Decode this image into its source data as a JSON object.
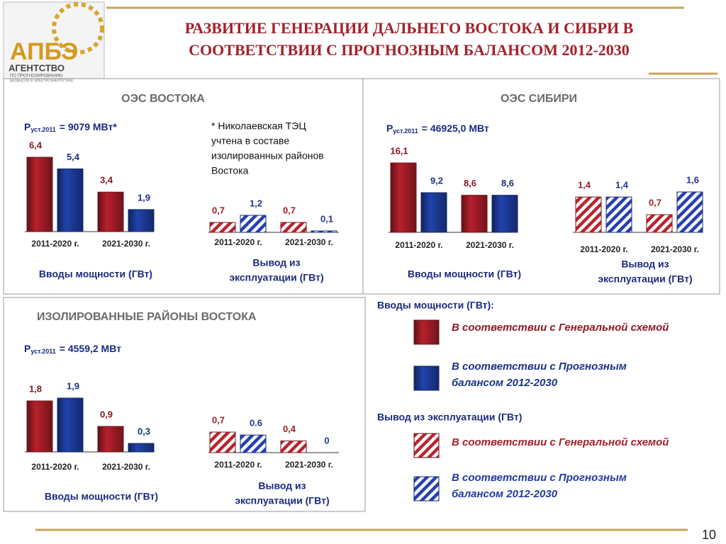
{
  "header": {
    "title_lines": [
      "РАЗВИТИЕ ГЕНЕРАЦИИ ДАЛЬНЕГО ВОСТОКА И СИБРИ В",
      "СООТВЕТСТВИИ С ПРОГНОЗНЫМ БАЛАНСОМ 2012-2030"
    ],
    "logo": {
      "mark": "АПБЭ",
      "name": "АГЕНТСТВО",
      "sub_lines": [
        "ПО ПРОГНОЗИРОВАНИЮ",
        "БАЛАНСОВ В ЭЛЕКТРОЭНЕРГЕТИКЕ"
      ]
    }
  },
  "panels": [
    {
      "title": "ОЭС ВОСТОКА",
      "power": {
        "symbol": "P",
        "subscript": "уст.2011",
        "value": "= 9079 МВт*"
      },
      "note_lines": [
        "* Николаевская ТЭЦ",
        "учтена в составе",
        "изолированных районов",
        "Востока"
      ]
    },
    {
      "title": "ОЭС СИБИРИ",
      "power": {
        "symbol": "P",
        "subscript": "уст.2011",
        "value": "= 46925,0 МВт"
      }
    },
    {
      "title": "ИЗОЛИРОВАННЫЕ РАЙОНЫ ВОСТОКА",
      "power": {
        "symbol": "P",
        "subscript": "уст.2011",
        "value": "= 4559,2 МВт"
      }
    }
  ],
  "chart_data": [
    {
      "type": "bar",
      "caption_lines": [
        "Вводы мощности (ГВт)"
      ],
      "categories": [
        "2011-2020 г.",
        "2021-2030 г."
      ],
      "series": [
        {
          "color": "#a01c26",
          "values": [
            6.4,
            3.4
          ],
          "value_labels": [
            "6,4",
            "3,4"
          ]
        },
        {
          "color": "#1c3a96",
          "values": [
            5.4,
            1.9
          ],
          "value_labels": [
            "5,4",
            "1,9"
          ]
        }
      ]
    },
    {
      "type": "bar",
      "pattern": "hatch",
      "caption_lines": [
        "Вывод из",
        "эксплуатации (ГВт)"
      ],
      "categories": [
        "2011-2020 г.",
        "2021-2030 г."
      ],
      "series": [
        {
          "color": "#b8242e",
          "values": [
            0.7,
            0.7
          ],
          "value_labels": [
            "0,7",
            "0,7"
          ]
        },
        {
          "color": "#2540b0",
          "values": [
            1.2,
            0.1
          ],
          "value_labels": [
            "1,2",
            "0,1"
          ]
        }
      ]
    },
    {
      "type": "bar",
      "caption_lines": [
        "Вводы мощности (ГВт)"
      ],
      "categories": [
        "2011-2020 г.",
        "2021-2030 г."
      ],
      "series": [
        {
          "color": "#a01c26",
          "values": [
            16.1,
            8.6
          ],
          "value_labels": [
            "16,1",
            "8,6"
          ]
        },
        {
          "color": "#1c3a96",
          "values": [
            9.2,
            8.6
          ],
          "value_labels": [
            "9,2",
            "8,6"
          ]
        }
      ]
    },
    {
      "type": "bar",
      "pattern": "hatch",
      "caption_lines": [
        "Вывод из",
        "эксплуатации (ГВт)"
      ],
      "categories": [
        "2011-2020 г.",
        "2021-2030 г."
      ],
      "series": [
        {
          "color": "#b8242e",
          "values": [
            1.4,
            0.7
          ],
          "value_labels": [
            "1,4",
            "0,7"
          ]
        },
        {
          "color": "#2540b0",
          "values": [
            1.4,
            1.6
          ],
          "value_labels": [
            "1,4",
            "1,6"
          ]
        }
      ]
    },
    {
      "type": "bar",
      "caption_lines": [
        "Вводы мощности (ГВт)"
      ],
      "categories": [
        "2011-2020 г.",
        "2021-2030 г."
      ],
      "series": [
        {
          "color": "#a01c26",
          "values": [
            1.8,
            0.9
          ],
          "value_labels": [
            "1,8",
            "0,9"
          ]
        },
        {
          "color": "#1c3a96",
          "values": [
            1.9,
            0.3
          ],
          "value_labels": [
            "1,9",
            "0,3"
          ]
        }
      ]
    },
    {
      "type": "bar",
      "pattern": "hatch",
      "caption_lines": [
        "Вывод из",
        "эксплуатации (ГВт)"
      ],
      "categories": [
        "2011-2020 г.",
        "2021-2030 г."
      ],
      "series": [
        {
          "color": "#b8242e",
          "values": [
            0.7,
            0.4
          ],
          "value_labels": [
            "0,7",
            "0,4"
          ]
        },
        {
          "color": "#2540b0",
          "values": [
            0.6,
            0
          ]
        }
      ]
    }
  ],
  "legend": {
    "sections": [
      {
        "title": "Вводы мощности (ГВт):",
        "items": [
          {
            "color": "#a01c26",
            "lines": [
              "В соответствии с Генеральной схемой"
            ]
          },
          {
            "color": "#1c3a96",
            "lines": [
              "В соответствии с Прогнозным",
              "балансом 2012-2030"
            ]
          }
        ]
      },
      {
        "title": "Вывод из эксплуатации (ГВт)",
        "pattern": "hatch",
        "items": [
          {
            "color": "#b8242e",
            "lines": [
              "В соответствии с Генеральной схемой"
            ]
          },
          {
            "color": "#2540b0",
            "lines": [
              "В соответствии с Прогнозным",
              "балансом 2012-2030"
            ]
          }
        ]
      }
    ]
  },
  "page_number": "10"
}
